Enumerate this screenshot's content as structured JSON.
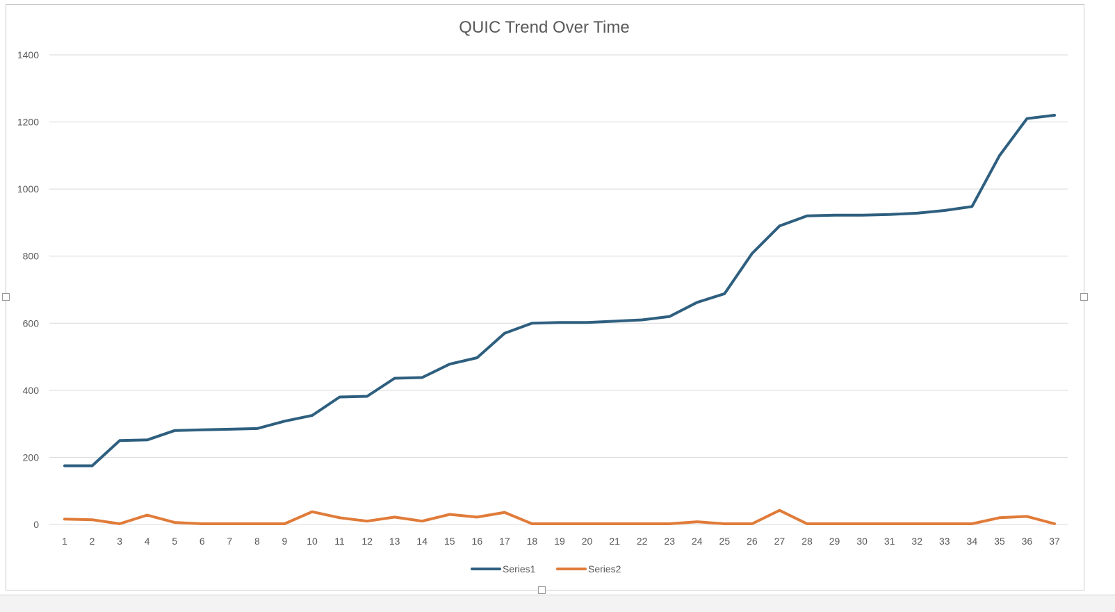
{
  "chart_data": {
    "type": "line",
    "title": "QUIC Trend Over Time",
    "xlabel": "",
    "ylabel": "",
    "x": [
      1,
      2,
      3,
      4,
      5,
      6,
      7,
      8,
      9,
      10,
      11,
      12,
      13,
      14,
      15,
      16,
      17,
      18,
      19,
      20,
      21,
      22,
      23,
      24,
      25,
      26,
      27,
      28,
      29,
      30,
      31,
      32,
      33,
      34,
      35,
      36,
      37
    ],
    "ylim": [
      0,
      1400
    ],
    "yticks": [
      0,
      200,
      400,
      600,
      800,
      1000,
      1200,
      1400
    ],
    "grid": true,
    "legend_position": "bottom",
    "series": [
      {
        "name": "Series1",
        "color": "#2e5f7f",
        "values": [
          175,
          175,
          250,
          252,
          280,
          282,
          284,
          286,
          308,
          325,
          380,
          382,
          436,
          438,
          478,
          497,
          570,
          600,
          602,
          602,
          606,
          610,
          620,
          662,
          688,
          808,
          890,
          920,
          922,
          922,
          924,
          928,
          936,
          948,
          1100,
          1210,
          1220
        ]
      },
      {
        "name": "Series2",
        "color": "#e07b39",
        "values": [
          16,
          14,
          2,
          28,
          6,
          2,
          2,
          2,
          2,
          38,
          20,
          10,
          22,
          10,
          30,
          22,
          36,
          2,
          2,
          2,
          2,
          2,
          2,
          8,
          2,
          2,
          42,
          2,
          2,
          2,
          2,
          2,
          2,
          2,
          20,
          24,
          2
        ]
      }
    ]
  }
}
